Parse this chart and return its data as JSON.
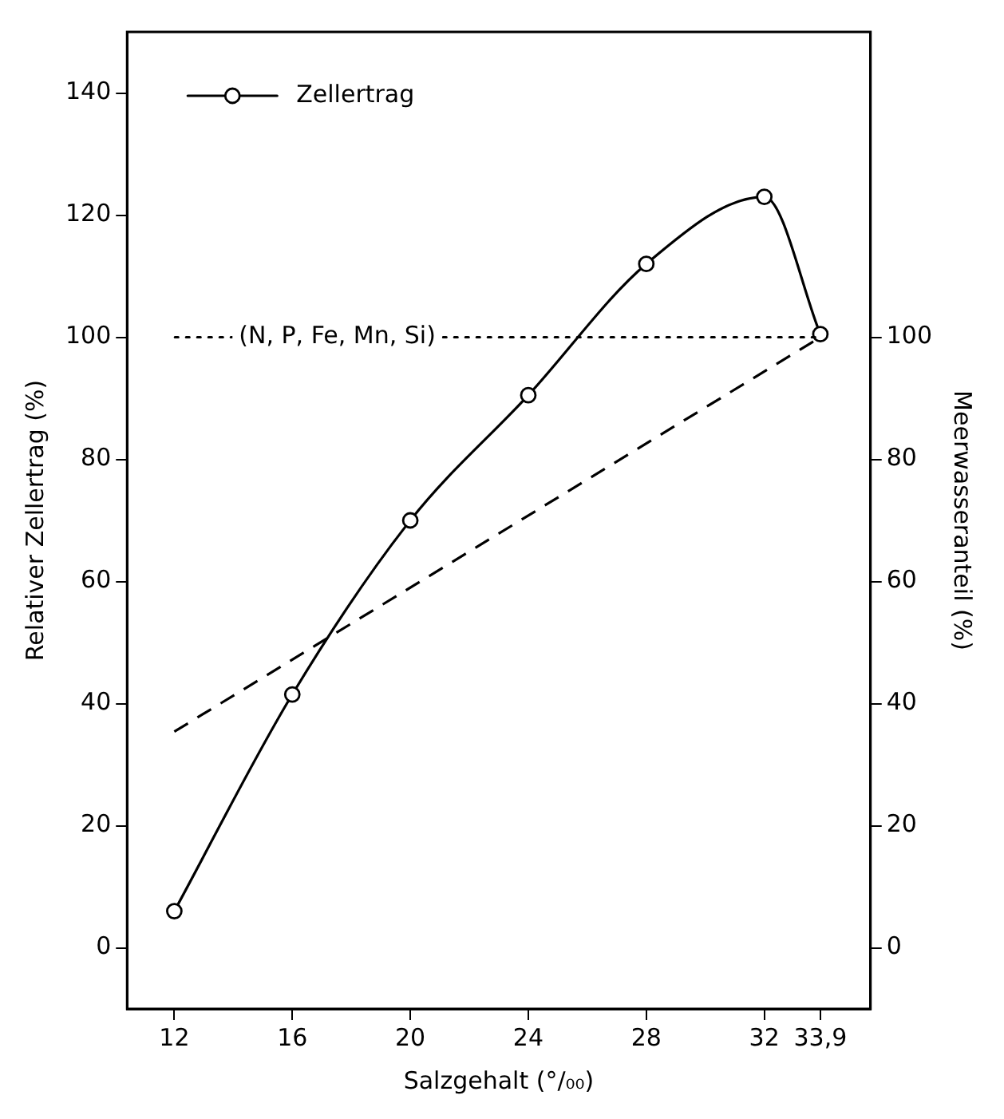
{
  "chart_data": {
    "type": "line",
    "xlabel": "Salzgehalt (°/₀₀)",
    "ylabel": "Relativer Zellertrag (%)",
    "y2label": "Meerwasseranteil (%)",
    "x": [
      12,
      16,
      20,
      24,
      28,
      32,
      33.9
    ],
    "series": [
      {
        "name": "Zellertrag",
        "color": "#000000",
        "values": [
          6,
          41.5,
          70,
          90.5,
          112,
          123,
          100.5
        ],
        "marker": "circle",
        "line_style": "solid"
      },
      {
        "color": "#000000",
        "x": [
          12,
          33.9
        ],
        "values": [
          35.4,
          100
        ],
        "axis": "y2",
        "marker": "none",
        "line_style": "dashed"
      }
    ],
    "xlim": [
      10.4,
      35.6
    ],
    "xticks": [
      12,
      16,
      20,
      24,
      28,
      32,
      {
        "value": 33.9,
        "label": "33,9"
      }
    ],
    "ylim": [
      -10,
      150
    ],
    "yticks": [
      0,
      20,
      40,
      60,
      80,
      100,
      120,
      140
    ],
    "y2lim": [
      -10,
      150
    ],
    "y2ticks": [
      0,
      20,
      40,
      60,
      80,
      100
    ],
    "ref_lines": [
      {
        "axis": "y",
        "value": 100,
        "label": "(N, P, Fe, Mn, Si)",
        "line_style": "dotted",
        "color": "#000000"
      }
    ],
    "grid": false,
    "legend": "top left"
  }
}
